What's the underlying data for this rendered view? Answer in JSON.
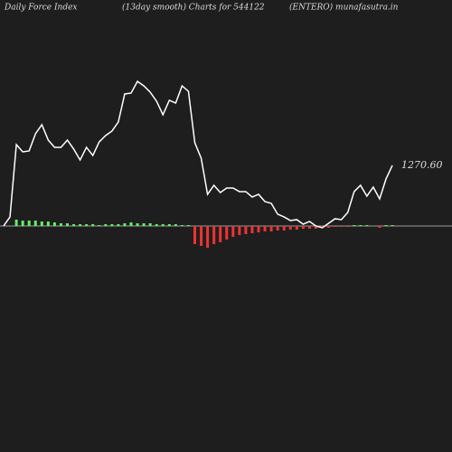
{
  "chart_data": {
    "type": "line",
    "title": "Daily Force  Index",
    "subtitle": "(13day smooth) Charts for 544122",
    "source": "(ENTERO) munafasutra.in",
    "ylim": [
      478,
      1728
    ],
    "y2lim": [
      -250,
      250
    ],
    "series": [
      {
        "type": "line",
        "color": "#ffffff",
        "values": [
          1103.1,
          1128.1,
          1328.1,
          1308.1,
          1310.6,
          1358.1,
          1383.1,
          1340.6,
          1320.6,
          1320.6,
          1340.6,
          1315.6,
          1285.6,
          1320.6,
          1298.1,
          1335.6,
          1353.1,
          1365.6,
          1390.6,
          1468.1,
          1470.6,
          1503.1,
          1490.6,
          1473.1,
          1448.1,
          1410.6,
          1450.6,
          1443.1,
          1490.6,
          1475.6,
          1333.1,
          1290.6,
          1190.6,
          1215.6,
          1195.6,
          1208.1,
          1208.1,
          1198.1,
          1198.1,
          1183.1,
          1190.6,
          1170.6,
          1165.6,
          1135.6,
          1128.1,
          1118.1,
          1120.6,
          1108.1,
          1115.6,
          1103.1,
          1098.1,
          1110.6,
          1123.1,
          1120.6,
          1140.6,
          1198.1,
          1215.6,
          1185.6,
          1210.6,
          1178.1,
          1233.1,
          1270.6
        ],
        "value_labels": [
          null,
          null,
          null,
          null,
          null,
          null,
          null,
          null,
          null,
          null,
          null,
          null,
          null,
          null,
          null,
          null,
          null,
          null,
          null,
          null,
          null,
          null,
          null,
          null,
          null,
          null,
          null,
          null,
          null,
          null,
          null,
          null,
          null,
          null,
          null,
          null,
          null,
          null,
          null,
          null,
          null,
          null,
          null,
          null,
          null,
          null,
          null,
          null,
          null,
          null,
          null,
          null,
          null,
          null,
          null,
          null,
          null,
          null,
          null,
          null,
          null,
          "1270.60"
        ]
      },
      {
        "type": "bar",
        "axis": "y2",
        "color": "#66ee66",
        "negative_color": "#ee3333",
        "values": [
          0,
          0,
          7,
          6,
          6,
          6,
          5,
          5,
          4,
          3,
          3,
          2,
          2,
          2,
          2,
          1,
          2,
          2,
          2,
          3,
          4,
          3,
          3,
          3,
          2,
          2,
          2,
          2,
          1,
          1,
          -20,
          -22,
          -24,
          -20,
          -18,
          -15,
          -12,
          -10,
          -9,
          -8,
          -7,
          -6,
          -6,
          -5,
          -5,
          -4,
          -4,
          -3,
          -3,
          -3,
          -2,
          -2,
          -1,
          -1,
          -1,
          1,
          1,
          1,
          0,
          -2,
          1,
          1
        ]
      }
    ]
  }
}
